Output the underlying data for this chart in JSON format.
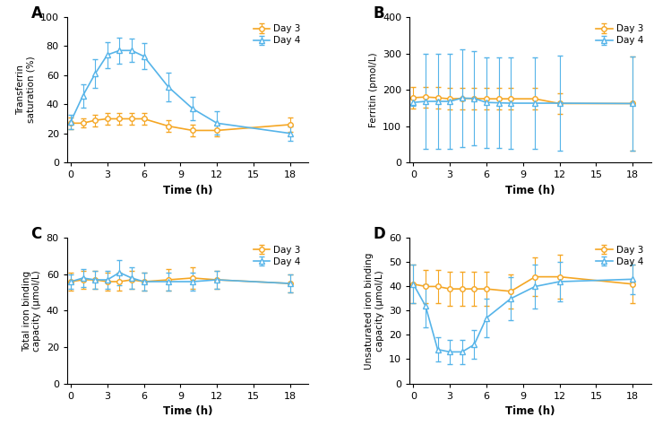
{
  "time_A": [
    0,
    1,
    2,
    3,
    4,
    5,
    6,
    8,
    10,
    12,
    18
  ],
  "A_day3_mean": [
    27,
    27,
    29,
    30,
    30,
    30,
    30,
    25,
    22,
    22,
    26
  ],
  "A_day3_err": [
    4,
    3,
    4,
    4,
    4,
    4,
    4,
    4,
    4,
    4,
    5
  ],
  "A_day4_mean": [
    28,
    46,
    61,
    74,
    77,
    77,
    73,
    52,
    37,
    27,
    20
  ],
  "A_day4_err": [
    5,
    8,
    10,
    9,
    9,
    8,
    9,
    10,
    8,
    8,
    5
  ],
  "time_B": [
    0,
    1,
    2,
    3,
    4,
    5,
    6,
    7,
    8,
    10,
    12,
    18
  ],
  "B_day3_mean": [
    178,
    180,
    178,
    175,
    176,
    176,
    175,
    175,
    175,
    175,
    162,
    162
  ],
  "B_day3_err": [
    30,
    28,
    30,
    30,
    30,
    30,
    30,
    30,
    30,
    30,
    28,
    130
  ],
  "B_day4_mean": [
    165,
    168,
    168,
    168,
    177,
    176,
    165,
    164,
    163,
    163,
    163,
    162
  ],
  "B_day4_err": [
    10,
    130,
    130,
    130,
    135,
    130,
    125,
    125,
    125,
    125,
    130,
    130
  ],
  "time_C": [
    0,
    1,
    2,
    3,
    4,
    5,
    6,
    8,
    10,
    12,
    18
  ],
  "C_day3_mean": [
    56,
    57,
    57,
    56,
    56,
    57,
    56,
    57,
    58,
    57,
    55
  ],
  "C_day3_err": [
    5,
    5,
    5,
    5,
    5,
    5,
    5,
    6,
    6,
    5,
    5
  ],
  "C_day4_mean": [
    56,
    58,
    57,
    57,
    61,
    58,
    56,
    56,
    56,
    57,
    55
  ],
  "C_day4_err": [
    4,
    5,
    5,
    5,
    7,
    6,
    5,
    5,
    5,
    5,
    5
  ],
  "time_D": [
    0,
    1,
    2,
    3,
    4,
    5,
    6,
    8,
    10,
    12,
    18
  ],
  "D_day3_mean": [
    41,
    40,
    40,
    39,
    39,
    39,
    39,
    38,
    44,
    44,
    41
  ],
  "D_day3_err": [
    8,
    7,
    7,
    7,
    7,
    7,
    7,
    7,
    8,
    9,
    8
  ],
  "D_day4_mean": [
    41,
    32,
    14,
    13,
    13,
    16,
    27,
    35,
    40,
    42,
    43
  ],
  "D_day4_err": [
    8,
    9,
    5,
    5,
    5,
    6,
    8,
    9,
    9,
    8,
    6
  ],
  "color_day3": "#F5A623",
  "color_day4": "#56B4E9",
  "marker_day3": "o",
  "marker_day4": "^",
  "linewidth": 1.2,
  "markersize": 4,
  "A_ylabel": "Transferrin\nsaturation (%)",
  "A_ylim": [
    0,
    100
  ],
  "A_yticks": [
    0,
    20,
    40,
    60,
    80,
    100
  ],
  "B_ylabel": "Ferritin (pmol/L)",
  "B_ylim": [
    0,
    400
  ],
  "B_yticks": [
    0,
    100,
    200,
    300,
    400
  ],
  "C_ylabel": "Total iron binding\ncapacity (μmol/L)",
  "C_ylim": [
    0,
    80
  ],
  "C_yticks": [
    0,
    20,
    40,
    60,
    80
  ],
  "D_ylabel": "Unsaturated iron binding\ncapacity (μmol/L)",
  "D_ylim": [
    0,
    60
  ],
  "D_yticks": [
    0,
    10,
    20,
    30,
    40,
    50,
    60
  ],
  "xlabel": "Time (h)",
  "xticks": [
    0,
    3,
    6,
    9,
    12,
    15,
    18
  ],
  "xlim": [
    -0.3,
    19.5
  ],
  "panel_labels": [
    "A",
    "B",
    "C",
    "D"
  ],
  "legend_day3": "Day 3",
  "legend_day4": "Day 4"
}
